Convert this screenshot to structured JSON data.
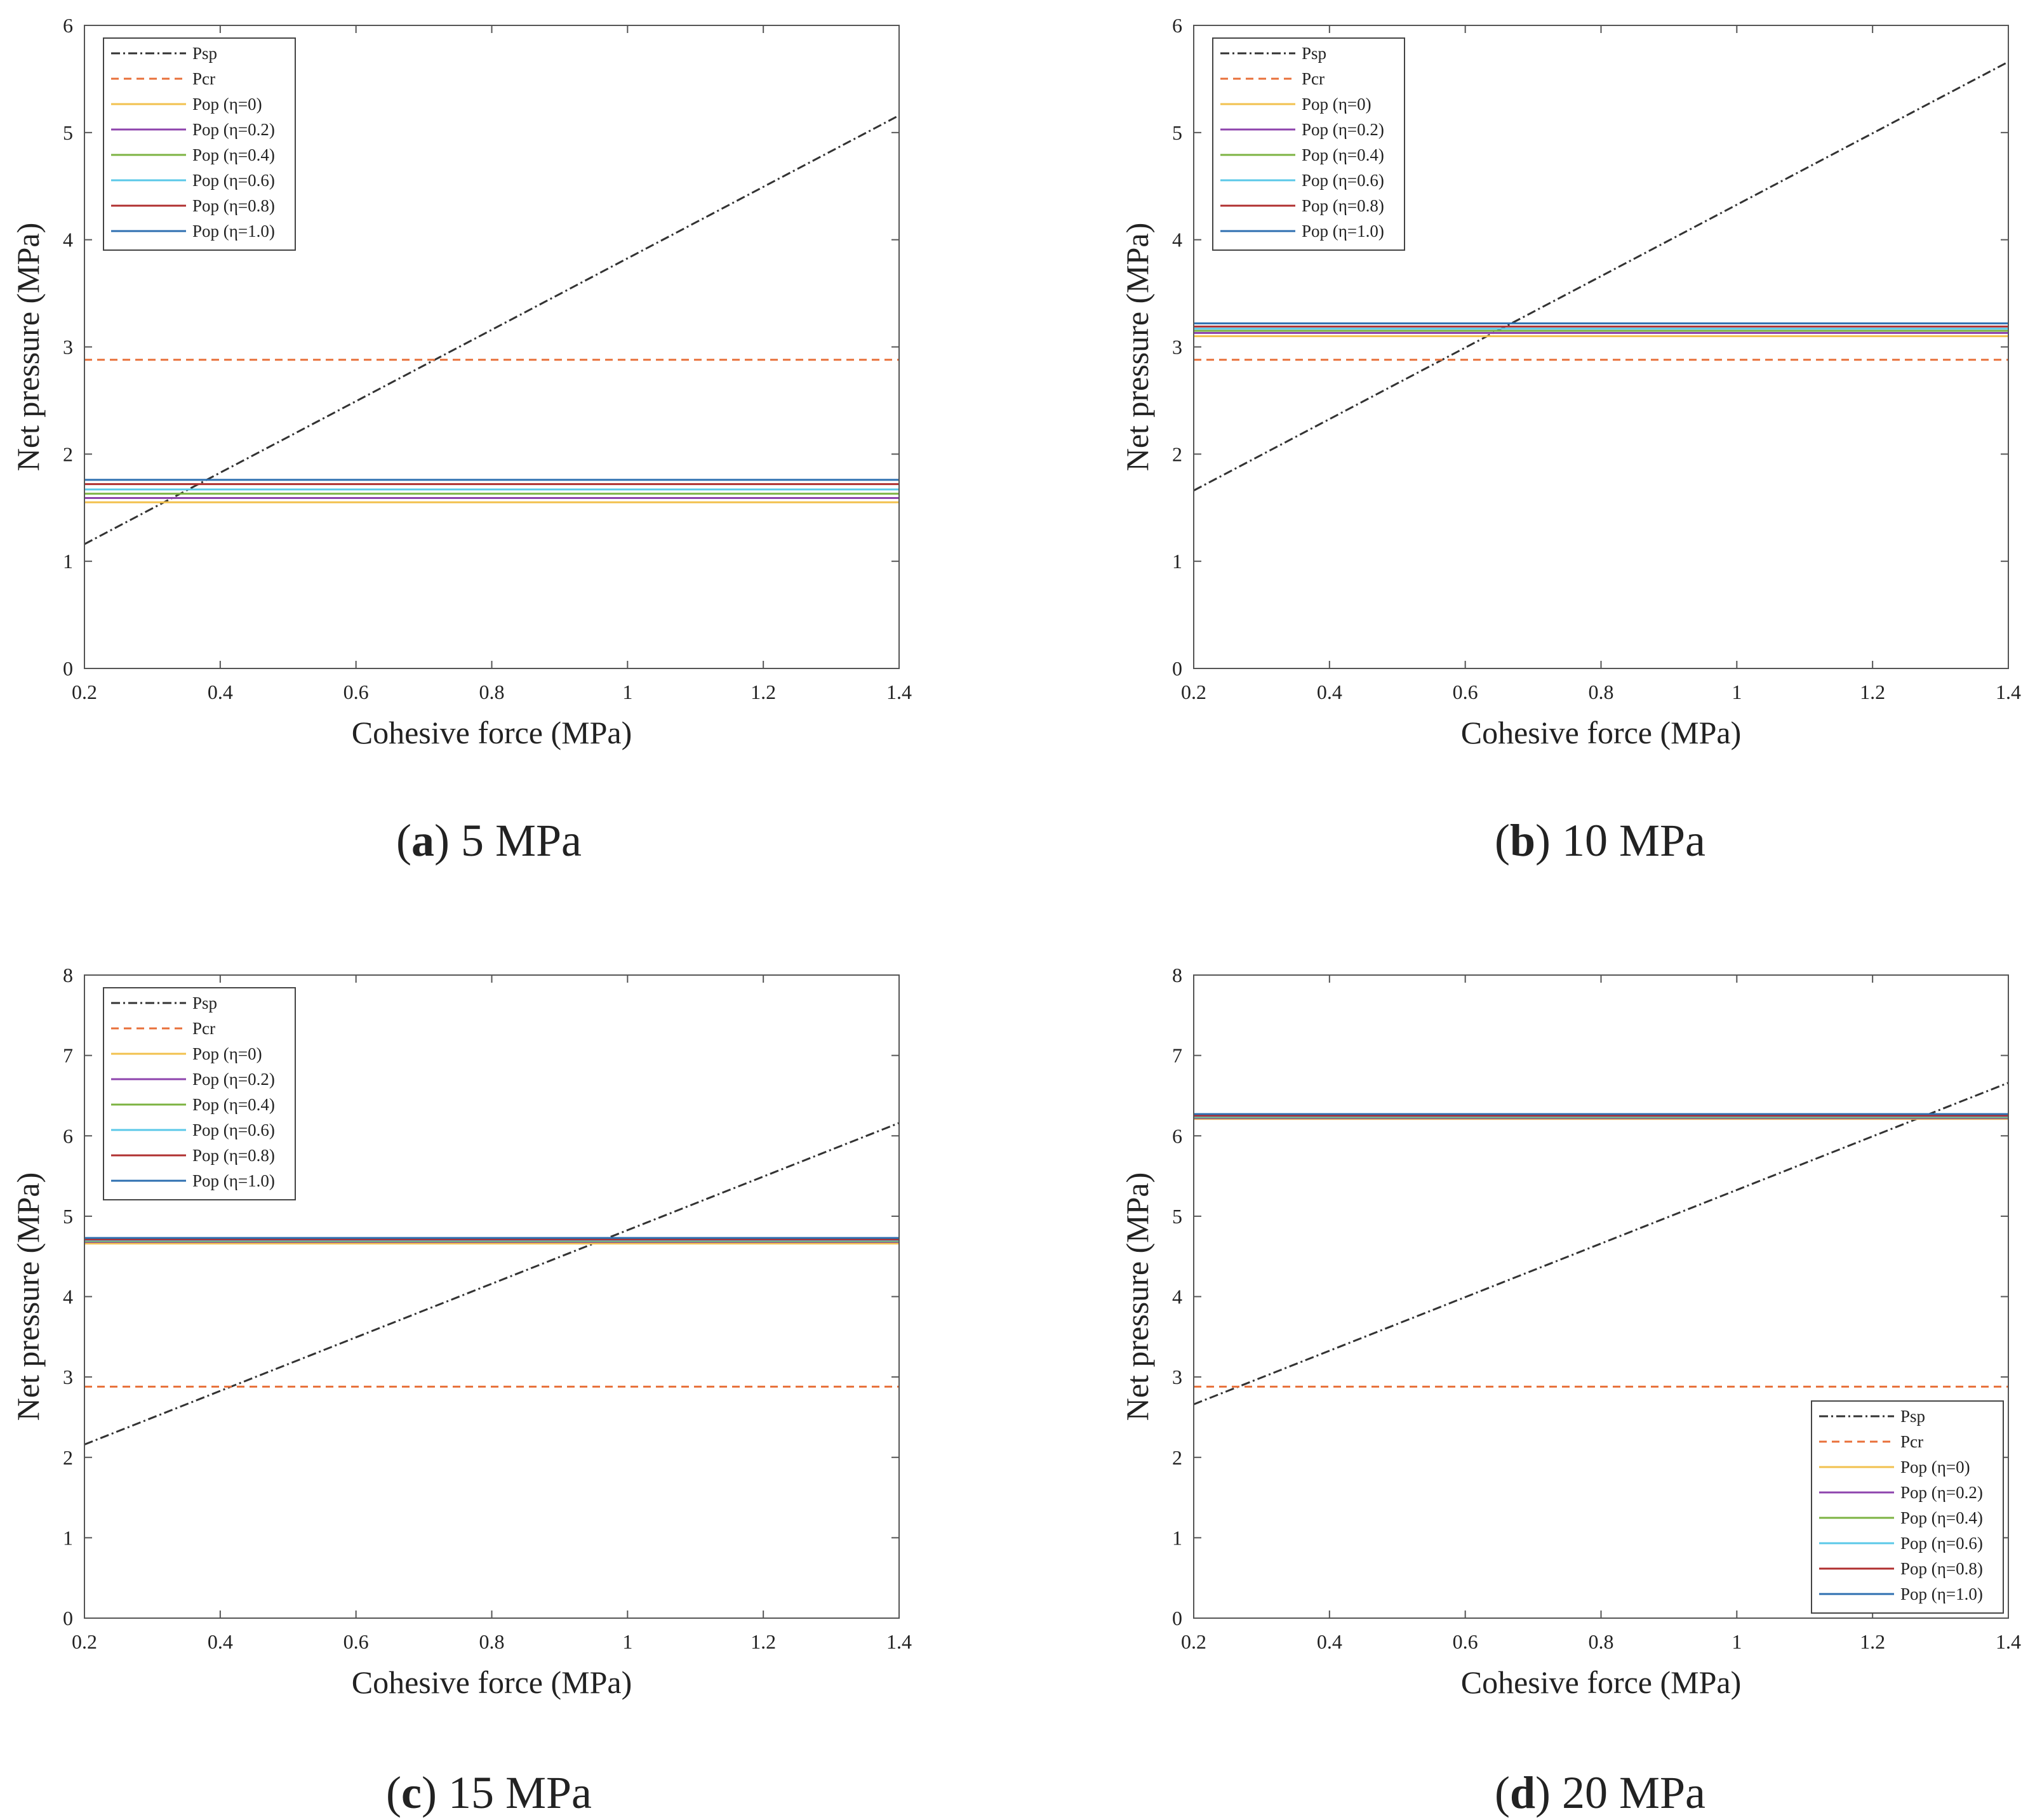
{
  "figure": {
    "panels": [
      {
        "letter": "a",
        "caption_value": "5 MPa"
      },
      {
        "letter": "b",
        "caption_value": "10 MPa"
      },
      {
        "letter": "c",
        "caption_value": "15 MPa"
      },
      {
        "letter": "d",
        "caption_value": "20 MPa"
      }
    ]
  },
  "series_styles": [
    {
      "name": "Psp",
      "color": "#333333",
      "dash": "dashdot"
    },
    {
      "name": "Pcr",
      "color": "#E8703A",
      "dash": "dashed"
    },
    {
      "name": "Pop (η=0)",
      "color": "#F2C14E",
      "dash": "solid"
    },
    {
      "name": "Pop (η=0.2)",
      "color": "#8E44AD",
      "dash": "solid"
    },
    {
      "name": "Pop (η=0.4)",
      "color": "#7CB342",
      "dash": "solid"
    },
    {
      "name": "Pop (η=0.6)",
      "color": "#5BC8E8",
      "dash": "solid"
    },
    {
      "name": "Pop (η=0.8)",
      "color": "#B03030",
      "dash": "solid"
    },
    {
      "name": "Pop (η=1.0)",
      "color": "#2E6FB0",
      "dash": "solid"
    }
  ],
  "chart_data": [
    {
      "type": "line",
      "panel": "a",
      "xlabel": "Cohesive force (MPa)",
      "ylabel": "Net pressure (MPa)",
      "xlim": [
        0.2,
        1.4
      ],
      "ylim": [
        0,
        6
      ],
      "xticks": [
        "0.2",
        "0.4",
        "0.6",
        "0.8",
        "1",
        "1.2",
        "1.4"
      ],
      "yticks": [
        "0",
        "1",
        "2",
        "3",
        "4",
        "5",
        "6"
      ],
      "legend_position": "top-left",
      "series": [
        {
          "name": "Psp",
          "x": [
            0.2,
            1.4
          ],
          "y": [
            1.16,
            5.16
          ]
        },
        {
          "name": "Pcr",
          "x": [
            0.2,
            1.4
          ],
          "y": [
            2.88,
            2.88
          ]
        },
        {
          "name": "Pop (η=0)",
          "x": [
            0.2,
            1.4
          ],
          "y": [
            1.55,
            1.55
          ]
        },
        {
          "name": "Pop (η=0.2)",
          "x": [
            0.2,
            1.4
          ],
          "y": [
            1.59,
            1.59
          ]
        },
        {
          "name": "Pop (η=0.4)",
          "x": [
            0.2,
            1.4
          ],
          "y": [
            1.63,
            1.63
          ]
        },
        {
          "name": "Pop (η=0.6)",
          "x": [
            0.2,
            1.4
          ],
          "y": [
            1.67,
            1.67
          ]
        },
        {
          "name": "Pop (η=0.8)",
          "x": [
            0.2,
            1.4
          ],
          "y": [
            1.72,
            1.72
          ]
        },
        {
          "name": "Pop (η=1.0)",
          "x": [
            0.2,
            1.4
          ],
          "y": [
            1.76,
            1.76
          ]
        }
      ]
    },
    {
      "type": "line",
      "panel": "b",
      "xlabel": "Cohesive force (MPa)",
      "ylabel": "Net pressure (MPa)",
      "xlim": [
        0.2,
        1.4
      ],
      "ylim": [
        0,
        6
      ],
      "xticks": [
        "0.2",
        "0.4",
        "0.6",
        "0.8",
        "1",
        "1.2",
        "1.4"
      ],
      "yticks": [
        "0",
        "1",
        "2",
        "3",
        "4",
        "5",
        "6"
      ],
      "legend_position": "top-left",
      "series": [
        {
          "name": "Psp",
          "x": [
            0.2,
            1.4
          ],
          "y": [
            1.66,
            5.66
          ]
        },
        {
          "name": "Pcr",
          "x": [
            0.2,
            1.4
          ],
          "y": [
            2.88,
            2.88
          ]
        },
        {
          "name": "Pop (η=0)",
          "x": [
            0.2,
            1.4
          ],
          "y": [
            3.1,
            3.1
          ]
        },
        {
          "name": "Pop (η=0.2)",
          "x": [
            0.2,
            1.4
          ],
          "y": [
            3.13,
            3.13
          ]
        },
        {
          "name": "Pop (η=0.4)",
          "x": [
            0.2,
            1.4
          ],
          "y": [
            3.15,
            3.15
          ]
        },
        {
          "name": "Pop (η=0.6)",
          "x": [
            0.2,
            1.4
          ],
          "y": [
            3.17,
            3.17
          ]
        },
        {
          "name": "Pop (η=0.8)",
          "x": [
            0.2,
            1.4
          ],
          "y": [
            3.19,
            3.19
          ]
        },
        {
          "name": "Pop (η=1.0)",
          "x": [
            0.2,
            1.4
          ],
          "y": [
            3.22,
            3.22
          ]
        }
      ]
    },
    {
      "type": "line",
      "panel": "c",
      "xlabel": "Cohesive force (MPa)",
      "ylabel": "Net pressure (MPa)",
      "xlim": [
        0.2,
        1.4
      ],
      "ylim": [
        0,
        8
      ],
      "xticks": [
        "0.2",
        "0.4",
        "0.6",
        "0.8",
        "1",
        "1.2",
        "1.4"
      ],
      "yticks": [
        "0",
        "1",
        "2",
        "3",
        "4",
        "5",
        "6",
        "7",
        "8"
      ],
      "legend_position": "top-left",
      "series": [
        {
          "name": "Psp",
          "x": [
            0.2,
            1.4
          ],
          "y": [
            2.16,
            6.16
          ]
        },
        {
          "name": "Pcr",
          "x": [
            0.2,
            1.4
          ],
          "y": [
            2.88,
            2.88
          ]
        },
        {
          "name": "Pop (η=0)",
          "x": [
            0.2,
            1.4
          ],
          "y": [
            4.66,
            4.66
          ]
        },
        {
          "name": "Pop (η=0.2)",
          "x": [
            0.2,
            1.4
          ],
          "y": [
            4.68,
            4.68
          ]
        },
        {
          "name": "Pop (η=0.4)",
          "x": [
            0.2,
            1.4
          ],
          "y": [
            4.69,
            4.69
          ]
        },
        {
          "name": "Pop (η=0.6)",
          "x": [
            0.2,
            1.4
          ],
          "y": [
            4.7,
            4.7
          ]
        },
        {
          "name": "Pop (η=0.8)",
          "x": [
            0.2,
            1.4
          ],
          "y": [
            4.71,
            4.71
          ]
        },
        {
          "name": "Pop (η=1.0)",
          "x": [
            0.2,
            1.4
          ],
          "y": [
            4.73,
            4.73
          ]
        }
      ]
    },
    {
      "type": "line",
      "panel": "d",
      "xlabel": "Cohesive force (MPa)",
      "ylabel": "Net pressure (MPa)",
      "xlim": [
        0.2,
        1.4
      ],
      "ylim": [
        0,
        8
      ],
      "xticks": [
        "0.2",
        "0.4",
        "0.6",
        "0.8",
        "1",
        "1.2",
        "1.4"
      ],
      "yticks": [
        "0",
        "1",
        "2",
        "3",
        "4",
        "5",
        "6",
        "7",
        "8"
      ],
      "legend_position": "bottom-right",
      "series": [
        {
          "name": "Psp",
          "x": [
            0.2,
            1.4
          ],
          "y": [
            2.66,
            6.66
          ]
        },
        {
          "name": "Pcr",
          "x": [
            0.2,
            1.4
          ],
          "y": [
            2.88,
            2.88
          ]
        },
        {
          "name": "Pop (η=0)",
          "x": [
            0.2,
            1.4
          ],
          "y": [
            6.21,
            6.21
          ]
        },
        {
          "name": "Pop (η=0.2)",
          "x": [
            0.2,
            1.4
          ],
          "y": [
            6.22,
            6.22
          ]
        },
        {
          "name": "Pop (η=0.4)",
          "x": [
            0.2,
            1.4
          ],
          "y": [
            6.23,
            6.23
          ]
        },
        {
          "name": "Pop (η=0.6)",
          "x": [
            0.2,
            1.4
          ],
          "y": [
            6.24,
            6.24
          ]
        },
        {
          "name": "Pop (η=0.8)",
          "x": [
            0.2,
            1.4
          ],
          "y": [
            6.25,
            6.25
          ]
        },
        {
          "name": "Pop (η=1.0)",
          "x": [
            0.2,
            1.4
          ],
          "y": [
            6.27,
            6.27
          ]
        }
      ]
    }
  ]
}
